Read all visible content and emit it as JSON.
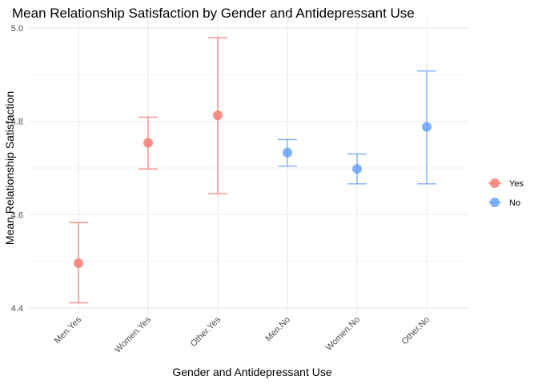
{
  "chart_data": {
    "type": "scatter",
    "title": "Mean Relationship Satisfaction by Gender and Antidepressant Use",
    "xlabel": "Gender and Antidepressant Use",
    "ylabel": "Mean Relationship Satisfaction",
    "categories": [
      "Men.Yes",
      "Women.Yes",
      "Other.Yes",
      "Men.No",
      "Women.No",
      "Other.No"
    ],
    "ylim": [
      4.4,
      5.0
    ],
    "yticks": [
      4.4,
      4.6,
      4.8,
      5.0
    ],
    "ytick_labels": [
      "4.4",
      "4.6",
      "4.8",
      "5.0"
    ],
    "grid": true,
    "legend_position": "right",
    "series": [
      {
        "name": "Yes",
        "color": "#F8766D",
        "points": [
          {
            "category": "Men.Yes",
            "mean": 4.496,
            "lower": 4.411,
            "upper": 4.583
          },
          {
            "category": "Women.Yes",
            "mean": 4.754,
            "lower": 4.698,
            "upper": 4.809
          },
          {
            "category": "Other.Yes",
            "mean": 4.813,
            "lower": 4.645,
            "upper": 4.979
          }
        ]
      },
      {
        "name": "No",
        "color": "#619CFF",
        "points": [
          {
            "category": "Men.No",
            "mean": 4.733,
            "lower": 4.704,
            "upper": 4.761
          },
          {
            "category": "Women.No",
            "mean": 4.698,
            "lower": 4.666,
            "upper": 4.73
          },
          {
            "category": "Other.No",
            "mean": 4.788,
            "lower": 4.666,
            "upper": 4.908
          }
        ]
      }
    ]
  }
}
